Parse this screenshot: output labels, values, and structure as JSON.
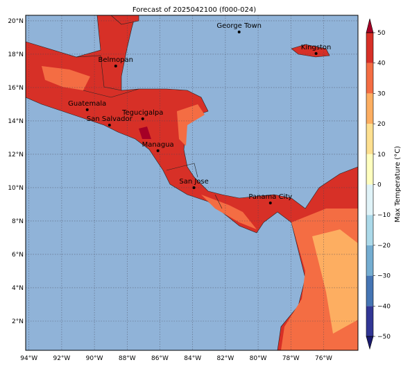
{
  "map": {
    "title": "Forecast of 2025042100 (f000-024)",
    "lon_lim": [
      -94.2,
      -73.9
    ],
    "lat_lim": [
      0.25,
      20.33
    ],
    "lon_ticks": [
      {
        "value": -94,
        "label": "94°W"
      },
      {
        "value": -92,
        "label": "92°W"
      },
      {
        "value": -90,
        "label": "90°W"
      },
      {
        "value": -88,
        "label": "88°W"
      },
      {
        "value": -86,
        "label": "86°W"
      },
      {
        "value": -84,
        "label": "84°W"
      },
      {
        "value": -82,
        "label": "82°W"
      },
      {
        "value": -80,
        "label": "80°W"
      },
      {
        "value": -78,
        "label": "78°W"
      },
      {
        "value": -76,
        "label": "76°W"
      }
    ],
    "lat_ticks": [
      {
        "value": 2,
        "label": "2°N"
      },
      {
        "value": 4,
        "label": "4°N"
      },
      {
        "value": 6,
        "label": "6°N"
      },
      {
        "value": 8,
        "label": "8°N"
      },
      {
        "value": 10,
        "label": "10°N"
      },
      {
        "value": 12,
        "label": "12°N"
      },
      {
        "value": 14,
        "label": "14°N"
      },
      {
        "value": 16,
        "label": "16°N"
      },
      {
        "value": 18,
        "label": "18°N"
      },
      {
        "value": 20,
        "label": "20°N"
      }
    ],
    "cities": [
      {
        "name": "George Town",
        "lon": -81.16,
        "lat": 19.33
      },
      {
        "name": "Kingston",
        "lon": -76.46,
        "lat": 18.04
      },
      {
        "name": "Belmopan",
        "lon": -88.7,
        "lat": 17.29
      },
      {
        "name": "Guatemala",
        "lon": -90.44,
        "lat": 14.67
      },
      {
        "name": "Tegucigalpa",
        "lon": -87.05,
        "lat": 14.13
      },
      {
        "name": "San Salvador",
        "lon": -89.08,
        "lat": 13.75
      },
      {
        "name": "Managua",
        "lon": -86.12,
        "lat": 12.21
      },
      {
        "name": "San Jose",
        "lon": -83.92,
        "lat": 10.0
      },
      {
        "name": "Panama City",
        "lon": -79.25,
        "lat": 9.08
      }
    ],
    "colorbar": {
      "label": "Max Temperature (°C)",
      "clim": [
        -50,
        50
      ],
      "ticks": [
        {
          "value": -50,
          "label": "−50"
        },
        {
          "value": -40,
          "label": "−40"
        },
        {
          "value": -30,
          "label": "−30"
        },
        {
          "value": -20,
          "label": "−20"
        },
        {
          "value": -10,
          "label": "−10"
        },
        0,
        10,
        20,
        30,
        40,
        50
      ],
      "colors": [
        "#313695",
        "#4575b4",
        "#74add1",
        "#abd9e9",
        "#e0f3f8",
        "#ffffbf",
        "#fee090",
        "#fdae61",
        "#f46d43",
        "#d73027"
      ],
      "under": "#1a1a6e",
      "over": "#a50026"
    }
  }
}
